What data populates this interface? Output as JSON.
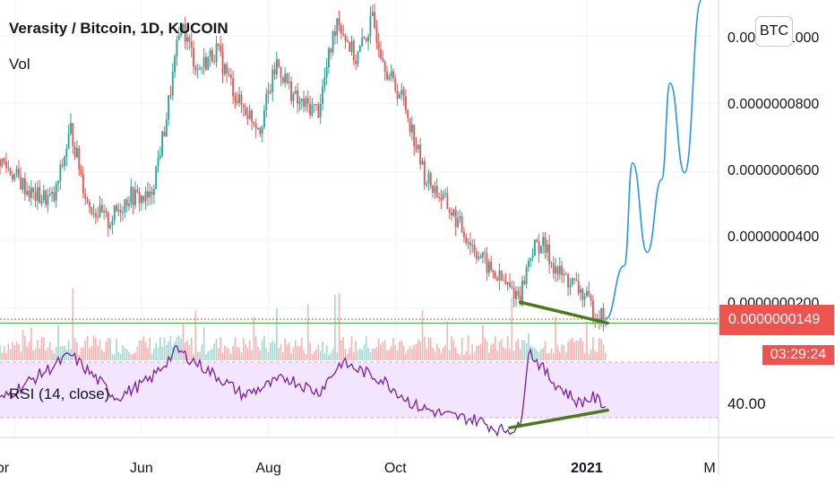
{
  "header": {
    "title": "Verasity / Bitcoin, 1D, KUCOIN",
    "vol_label": "Vol",
    "rsi_label": "RSI (14, close)",
    "currency_badge": "BTC"
  },
  "price_scale": {
    "ticks": [
      "0.0000001000",
      "0.0000000800",
      "0.0000000600",
      "0.0000000400",
      "0.0000000200"
    ],
    "last_price": "0.0000000149",
    "countdown": "03:29:24"
  },
  "rsi_scale": {
    "ticks": [
      "40.00"
    ]
  },
  "time_axis": {
    "labels": [
      "Apr",
      "Jun",
      "Aug",
      "Oct",
      "2021",
      "M"
    ],
    "bold_label": "2021"
  },
  "colors": {
    "up": "#26a69a",
    "down": "#ef5350",
    "projection": "#2196f3",
    "divergence": "#4a7a1c",
    "support": "#4caf50",
    "rsi_line": "#7b1fa2",
    "rsi_band": "#f3e5fd",
    "grid": "#f0f3fa",
    "text": "#131722"
  },
  "chart_data": {
    "type": "candlestick",
    "title": "Verasity / Bitcoin, 1D, KUCOIN",
    "x_axis": [
      "Apr",
      "Jun",
      "Aug",
      "Oct",
      "2021",
      "M"
    ],
    "y_ticks": [
      1e-07,
      8e-08,
      6e-08,
      4e-08,
      2e-08
    ],
    "ylim": [
      7e-09,
      1.11e-07
    ],
    "last_price": 1.49e-08,
    "price_anchors": [
      {
        "x": "2020-03-25",
        "price": 6.3e-08
      },
      {
        "x": "2020-04-10",
        "price": 5.2e-08
      },
      {
        "x": "2020-04-20",
        "price": 5.1e-08
      },
      {
        "x": "2020-04-28",
        "price": 7.2e-08
      },
      {
        "x": "2020-05-06",
        "price": 5e-08
      },
      {
        "x": "2020-05-16",
        "price": 4.4e-08
      },
      {
        "x": "2020-05-26",
        "price": 5.2e-08
      },
      {
        "x": "2020-06-05",
        "price": 5.1e-08
      },
      {
        "x": "2020-06-12",
        "price": 7.2e-08
      },
      {
        "x": "2020-06-20",
        "price": 1.04e-07
      },
      {
        "x": "2020-06-28",
        "price": 9e-08
      },
      {
        "x": "2020-07-07",
        "price": 9.6e-08
      },
      {
        "x": "2020-07-18",
        "price": 8e-08
      },
      {
        "x": "2020-07-28",
        "price": 7.3e-08
      },
      {
        "x": "2020-08-05",
        "price": 9.2e-08
      },
      {
        "x": "2020-08-15",
        "price": 8e-08
      },
      {
        "x": "2020-08-25",
        "price": 7.8e-08
      },
      {
        "x": "2020-09-03",
        "price": 1.06e-07
      },
      {
        "x": "2020-09-12",
        "price": 9.3e-08
      },
      {
        "x": "2020-09-20",
        "price": 1.05e-07
      },
      {
        "x": "2020-09-28",
        "price": 8.8e-08
      },
      {
        "x": "2020-10-05",
        "price": 8.1e-08
      },
      {
        "x": "2020-10-15",
        "price": 5.8e-08
      },
      {
        "x": "2020-10-25",
        "price": 5e-08
      },
      {
        "x": "2020-11-05",
        "price": 3.9e-08
      },
      {
        "x": "2020-11-15",
        "price": 3e-08
      },
      {
        "x": "2020-11-25",
        "price": 2.4e-08
      },
      {
        "x": "2020-11-30",
        "price": 2.2e-08
      },
      {
        "x": "2020-12-05",
        "price": 3.5e-08
      },
      {
        "x": "2020-12-10",
        "price": 3.8e-08
      },
      {
        "x": "2020-12-18",
        "price": 2.9e-08
      },
      {
        "x": "2020-12-28",
        "price": 2.4e-08
      },
      {
        "x": "2021-01-05",
        "price": 1.7e-08
      },
      {
        "x": "2021-01-10",
        "price": 1.49e-08
      }
    ],
    "projection": [
      {
        "x": "2021-01-10",
        "price": 1.49e-08
      },
      {
        "x": "2021-01-19",
        "price": 3.1e-08
      },
      {
        "x": "2021-01-23",
        "price": 6.2e-08
      },
      {
        "x": "2021-01-30",
        "price": 3.5e-08
      },
      {
        "x": "2021-02-06",
        "price": 5.7e-08
      },
      {
        "x": "2021-02-10",
        "price": 8.6e-08
      },
      {
        "x": "2021-02-17",
        "price": 5.9e-08
      },
      {
        "x": "2021-02-25",
        "price": 1.11e-07
      }
    ],
    "divergence_price": [
      {
        "x": "2020-11-30",
        "price": 2e-08
      },
      {
        "x": "2021-01-11",
        "price": 1.37e-08
      }
    ],
    "support_level": 1.37e-08,
    "rsi": {
      "label": "RSI (14, close)",
      "ticks": [
        40
      ],
      "anchors": [
        {
          "x": "2020-03-25",
          "rsi": 42
        },
        {
          "x": "2020-04-28",
          "rsi": 60
        },
        {
          "x": "2020-05-20",
          "rsi": 43
        },
        {
          "x": "2020-06-05",
          "rsi": 50
        },
        {
          "x": "2020-06-18",
          "rsi": 62
        },
        {
          "x": "2020-07-10",
          "rsi": 50
        },
        {
          "x": "2020-07-20",
          "rsi": 44
        },
        {
          "x": "2020-08-10",
          "rsi": 51
        },
        {
          "x": "2020-08-25",
          "rsi": 45
        },
        {
          "x": "2020-09-05",
          "rsi": 57
        },
        {
          "x": "2020-09-25",
          "rsi": 50
        },
        {
          "x": "2020-10-10",
          "rsi": 40
        },
        {
          "x": "2020-10-25",
          "rsi": 36
        },
        {
          "x": "2020-11-10",
          "rsi": 34
        },
        {
          "x": "2020-11-20",
          "rsi": 30
        },
        {
          "x": "2020-11-30",
          "rsi": 31
        },
        {
          "x": "2020-12-04",
          "rsi": 62
        },
        {
          "x": "2020-12-15",
          "rsi": 50
        },
        {
          "x": "2020-12-28",
          "rsi": 41
        },
        {
          "x": "2021-01-04",
          "rsi": 43
        },
        {
          "x": "2021-01-10",
          "rsi": 40
        }
      ],
      "divergence": [
        {
          "x": "2020-11-25",
          "rsi": 31
        },
        {
          "x": "2021-01-11",
          "rsi": 38
        }
      ]
    }
  }
}
